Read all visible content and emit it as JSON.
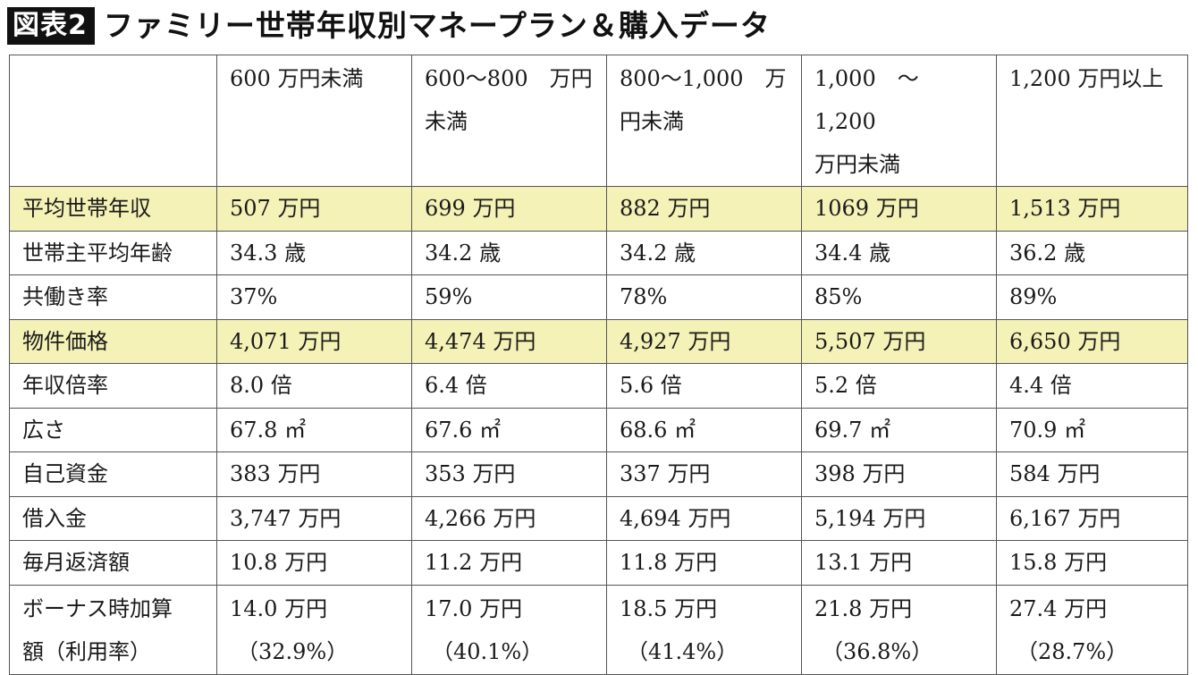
{
  "title": {
    "badge": "図表2",
    "text": "ファミリー世帯年収別マネープラン＆購入データ"
  },
  "table": {
    "headers": [
      [
        "",
        ""
      ],
      [
        "600 万円未満",
        ""
      ],
      [
        "600〜800　万円",
        "未満"
      ],
      [
        "800〜1,000　万",
        "円未満"
      ],
      [
        "1,000　〜　1,200",
        "万円未満"
      ],
      [
        "1,200 万円以上",
        ""
      ]
    ],
    "rows": [
      {
        "label": "平均世帯年収",
        "highlight": true,
        "values": [
          "507 万円",
          "699 万円",
          "882 万円",
          "1069 万円",
          "1,513 万円"
        ]
      },
      {
        "label": "世帯主平均年齢",
        "highlight": false,
        "values": [
          "34.3 歳",
          "34.2 歳",
          "34.2 歳",
          "34.4 歳",
          "36.2 歳"
        ]
      },
      {
        "label": "共働き率",
        "highlight": false,
        "values": [
          "37%",
          "59%",
          "78%",
          "85%",
          "89%"
        ]
      },
      {
        "label": "物件価格",
        "highlight": true,
        "values": [
          "4,071 万円",
          "4,474 万円",
          "4,927 万円",
          "5,507 万円",
          "6,650 万円"
        ]
      },
      {
        "label": "年収倍率",
        "highlight": false,
        "values": [
          "8.0 倍",
          "6.4 倍",
          "5.6 倍",
          "5.2 倍",
          "4.4 倍"
        ]
      },
      {
        "label": "広さ",
        "highlight": false,
        "values": [
          "67.8 ㎡",
          "67.6 ㎡",
          "68.6 ㎡",
          "69.7 ㎡",
          "70.9 ㎡"
        ]
      },
      {
        "label": "自己資金",
        "highlight": false,
        "values": [
          "383 万円",
          "353 万円",
          "337 万円",
          "398 万円",
          "584 万円"
        ]
      },
      {
        "label": "借入金",
        "highlight": false,
        "values": [
          "3,747 万円",
          "4,266 万円",
          "4,694 万円",
          "5,194 万円",
          "6,167 万円"
        ]
      },
      {
        "label": "毎月返済額",
        "highlight": false,
        "values": [
          "10.8 万円",
          "11.2 万円",
          "11.8 万円",
          "13.1 万円",
          "15.8 万円"
        ]
      }
    ],
    "bonus_row": {
      "label_lines": [
        "ボーナス時加算",
        "額（利用率）"
      ],
      "values": [
        [
          "14.0 万円",
          "（32.9%）"
        ],
        [
          "17.0 万円",
          "（40.1%）"
        ],
        [
          "18.5 万円",
          "（41.4%）"
        ],
        [
          "21.8 万円",
          "（36.8%）"
        ],
        [
          "27.4 万円",
          "（28.7%）"
        ]
      ]
    },
    "highlight_color": "#f4f2b6"
  }
}
